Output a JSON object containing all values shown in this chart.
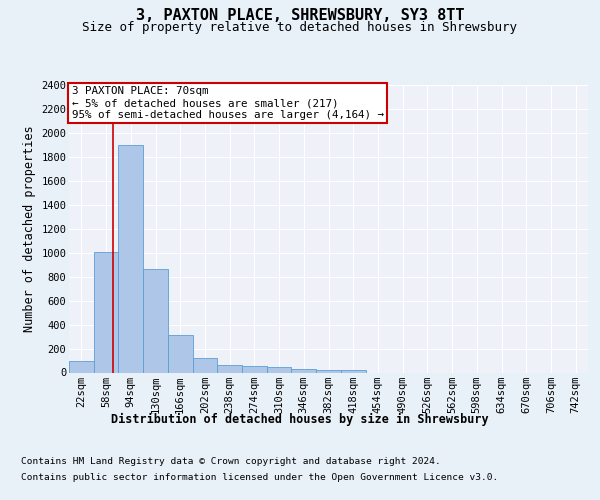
{
  "title": "3, PAXTON PLACE, SHREWSBURY, SY3 8TT",
  "subtitle": "Size of property relative to detached houses in Shrewsbury",
  "xlabel": "Distribution of detached houses by size in Shrewsbury",
  "ylabel": "Number of detached properties",
  "bar_labels": [
    "22sqm",
    "58sqm",
    "94sqm",
    "130sqm",
    "166sqm",
    "202sqm",
    "238sqm",
    "274sqm",
    "310sqm",
    "346sqm",
    "382sqm",
    "418sqm",
    "454sqm",
    "490sqm",
    "526sqm",
    "562sqm",
    "598sqm",
    "634sqm",
    "670sqm",
    "706sqm",
    "742sqm"
  ],
  "bar_values": [
    100,
    1010,
    1900,
    860,
    310,
    120,
    65,
    55,
    45,
    30,
    25,
    25,
    0,
    0,
    0,
    0,
    0,
    0,
    0,
    0,
    0
  ],
  "bar_color": "#aec6e8",
  "bar_edge_color": "#5a9fd4",
  "red_line_x": 1.28,
  "annotation_box_text": "3 PAXTON PLACE: 70sqm\n← 5% of detached houses are smaller (217)\n95% of semi-detached houses are larger (4,164) →",
  "annotation_box_color": "#ffffff",
  "annotation_box_edge_color": "#cc0000",
  "red_line_color": "#cc0000",
  "ylim": [
    0,
    2400
  ],
  "yticks": [
    0,
    200,
    400,
    600,
    800,
    1000,
    1200,
    1400,
    1600,
    1800,
    2000,
    2200,
    2400
  ],
  "footnote1": "Contains HM Land Registry data © Crown copyright and database right 2024.",
  "footnote2": "Contains public sector information licensed under the Open Government Licence v3.0.",
  "bg_color": "#e8f0f8",
  "plot_bg_color": "#eef2f8",
  "grid_color": "#ffffff",
  "title_fontsize": 11,
  "subtitle_fontsize": 9,
  "axis_label_fontsize": 8.5,
  "tick_fontsize": 7.5,
  "annotation_fontsize": 7.8,
  "footnote_fontsize": 6.8
}
